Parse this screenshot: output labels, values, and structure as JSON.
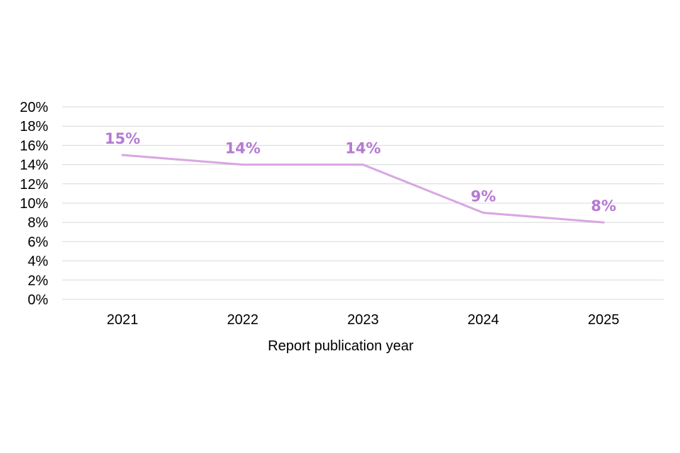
{
  "chart_data": {
    "type": "line",
    "categories": [
      "2021",
      "2022",
      "2023",
      "2024",
      "2025"
    ],
    "series": [
      {
        "values": [
          15,
          14,
          14,
          9,
          8
        ],
        "labels": [
          "15%",
          "14%",
          "14%",
          "9%",
          "8%"
        ]
      }
    ],
    "xlabel": "Report publication year",
    "ylabel": "",
    "ylim": [
      0,
      20
    ],
    "yticks": [
      0,
      2,
      4,
      6,
      8,
      10,
      12,
      14,
      16,
      18,
      20
    ],
    "ytick_labels": [
      "0%",
      "2%",
      "4%",
      "6%",
      "8%",
      "10%",
      "12%",
      "14%",
      "16%",
      "18%",
      "20%"
    ],
    "grid": true,
    "legend": "none",
    "colors": {
      "line": "#d9a6e3",
      "label": "#b57ad1",
      "grid": "#d9d9d9"
    }
  }
}
